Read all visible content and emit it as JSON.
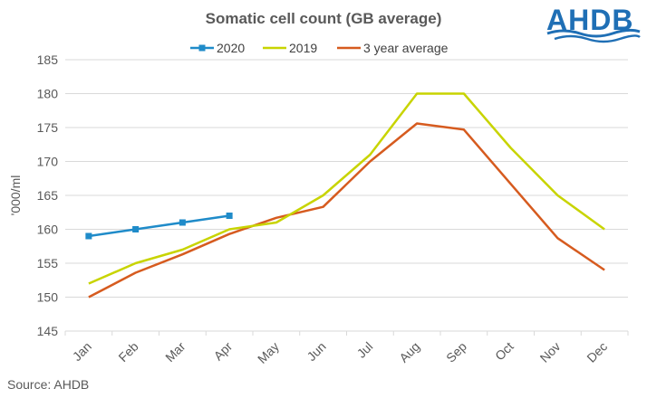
{
  "logo": {
    "text": "AHDB",
    "color": "#1f6fb5",
    "wave_color": "#1f6fb5"
  },
  "source": {
    "text": "Source: AHDB"
  },
  "chart_data": {
    "type": "line",
    "title": "Somatic cell count (GB average)",
    "xlabel": "",
    "ylabel": "'000/ml",
    "categories": [
      "Jan",
      "Feb",
      "Mar",
      "Apr",
      "May",
      "Jun",
      "Jul",
      "Aug",
      "Sep",
      "Oct",
      "Nov",
      "Dec"
    ],
    "ylim": [
      145,
      185
    ],
    "yticks": [
      145,
      150,
      155,
      160,
      165,
      170,
      175,
      180,
      185
    ],
    "grid": true,
    "legend_position": "top",
    "series": [
      {
        "name": "2020",
        "color": "#1f8bc9",
        "markers": true,
        "values": [
          159,
          160,
          161,
          162,
          null,
          null,
          null,
          null,
          null,
          null,
          null,
          null
        ]
      },
      {
        "name": "2019",
        "color": "#c8d400",
        "markers": false,
        "values": [
          152,
          155,
          157,
          160,
          161,
          165,
          171,
          180,
          180,
          172,
          165,
          160
        ]
      },
      {
        "name": "3 year average",
        "color": "#d65b1f",
        "markers": false,
        "values": [
          150,
          153.6,
          156.3,
          159.3,
          161.7,
          163.3,
          170,
          175.6,
          174.7,
          166.7,
          158.7,
          154
        ]
      }
    ]
  }
}
